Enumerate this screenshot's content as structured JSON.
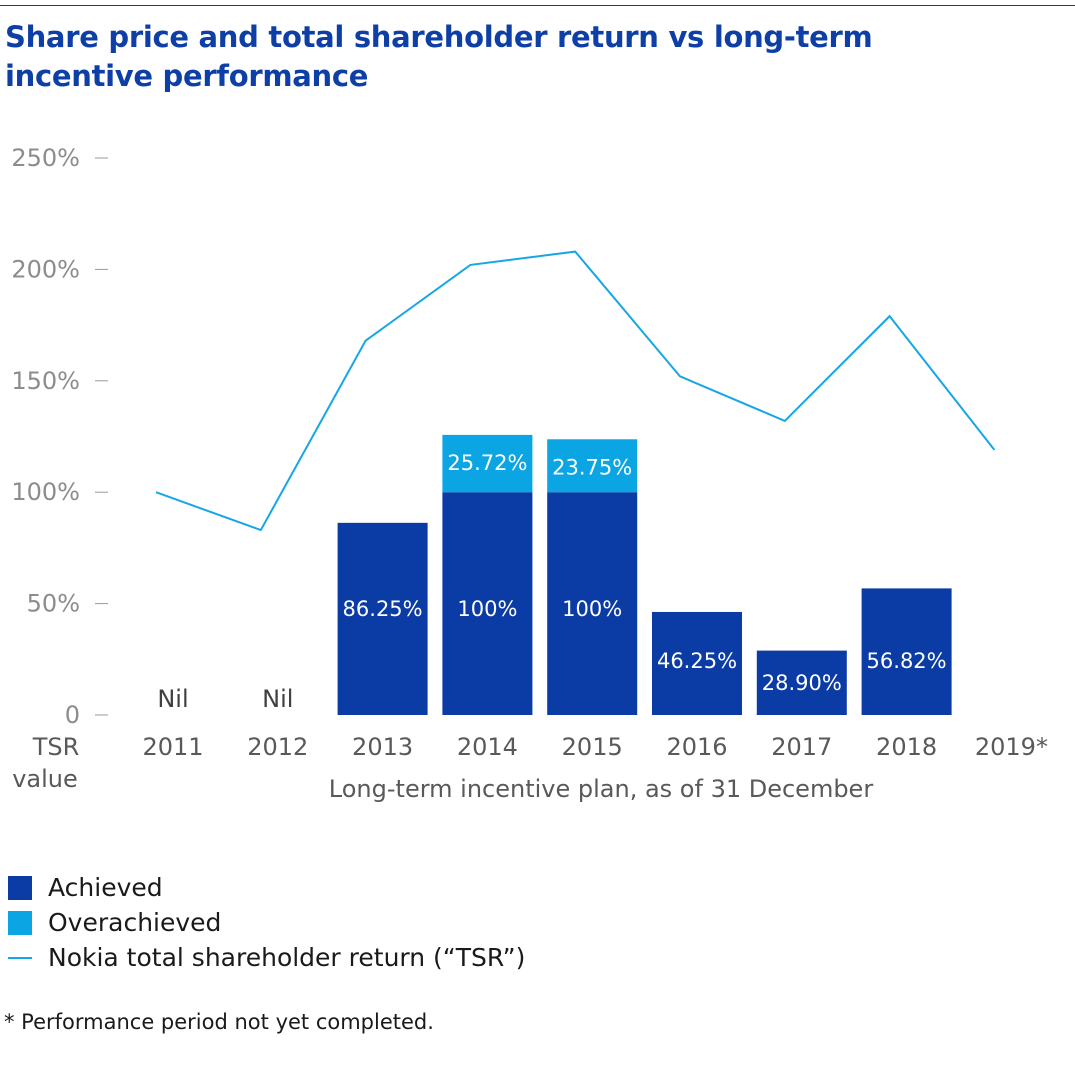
{
  "header": {
    "title": "Share price and total shareholder return vs long-term incentive performance"
  },
  "chart_data": {
    "type": "bar",
    "title": "Share price and total shareholder return vs long-term incentive performance",
    "xlabel": "Long-term incentive plan, as of 31 December",
    "ylabel": "TSR value",
    "ylim": [
      0,
      250
    ],
    "yticks": [
      0,
      50,
      100,
      150,
      200,
      250
    ],
    "ytick_labels": [
      "0",
      "50%",
      "100%",
      "150%",
      "200%",
      "250%"
    ],
    "categories": [
      "2011",
      "2012",
      "2013",
      "2014",
      "2015",
      "2016",
      "2017",
      "2018",
      "2019*"
    ],
    "series": [
      {
        "name": "Achieved",
        "type": "bar",
        "color": "#0b3ca6",
        "values": [
          null,
          null,
          86.25,
          100,
          100,
          46.25,
          28.9,
          56.82,
          null
        ],
        "labels": [
          "Nil",
          "Nil",
          "86.25%",
          "100%",
          "100%",
          "46.25%",
          "28.90%",
          "56.82%",
          ""
        ]
      },
      {
        "name": "Overachieved",
        "type": "bar",
        "stacked_on": "Achieved",
        "color": "#0ba5e3",
        "values": [
          null,
          null,
          null,
          25.72,
          23.75,
          null,
          null,
          null,
          null
        ],
        "labels": [
          "",
          "",
          "",
          "25.72%",
          "23.75%",
          "",
          "",
          "",
          ""
        ]
      },
      {
        "name": "Nokia total shareholder return (“TSR”)",
        "type": "line",
        "color": "#16a6e6",
        "values": [
          100,
          83,
          168,
          202,
          208,
          152,
          132,
          179,
          119
        ]
      }
    ],
    "legend": {
      "position": "bottom-left",
      "items": [
        {
          "label": "Achieved",
          "kind": "box",
          "color": "#0b3ca6"
        },
        {
          "label": "Overachieved",
          "kind": "box",
          "color": "#0ba5e3"
        },
        {
          "label": "Nokia total shareholder return (“TSR”)",
          "kind": "line",
          "color": "#16a6e6"
        }
      ]
    },
    "footnote": "* Performance period not yet completed."
  }
}
